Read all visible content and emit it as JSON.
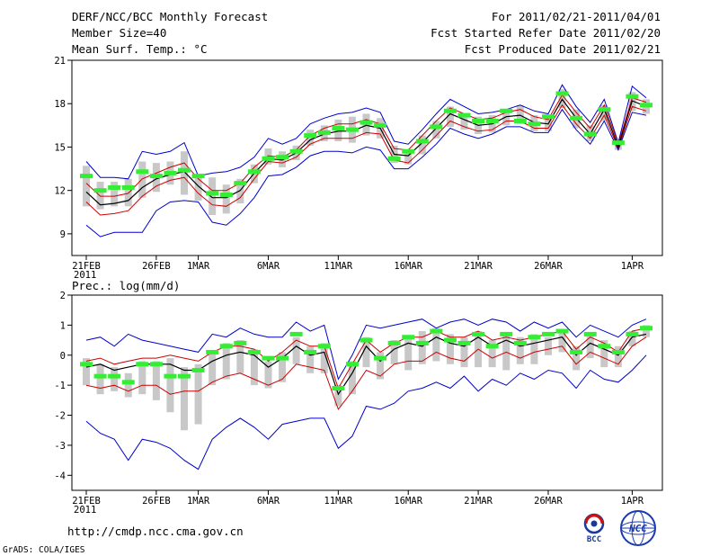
{
  "header": {
    "title": "DERF/NCC/BCC Monthly Forecast",
    "member_size": "Member Size=40",
    "variable": "Mean Surf. Temp.: °C",
    "period": "For 2011/02/21-2011/04/01",
    "start_refer": "Fcst Started Refer Date 2011/02/20",
    "produced": "Fcst Produced Date 2011/02/21"
  },
  "footer": {
    "url": "http://cmdp.ncc.cma.gov.cn",
    "grads": "GrADS: COLA/IGES",
    "logo_bcc": "BCC",
    "logo_ncc": "NCC"
  },
  "colors": {
    "max_min": "#0000cc",
    "std": "#cc0000",
    "mean": "#000000",
    "box": "#c8c8c8",
    "observed": "#33ee33"
  },
  "chart_data": [
    {
      "type": "line",
      "title": "Mean Surf. Temp.: °C",
      "ylim": [
        7.5,
        21
      ],
      "yticks": [
        9,
        12,
        15,
        18,
        21
      ],
      "x_tick_labels": [
        {
          "day": 0,
          "label": "21FEB",
          "sub": "2011"
        },
        {
          "day": 5,
          "label": "26FEB"
        },
        {
          "day": 8,
          "label": "1MAR"
        },
        {
          "day": 13,
          "label": "6MAR"
        },
        {
          "day": 18,
          "label": "11MAR"
        },
        {
          "day": 23,
          "label": "16MAR"
        },
        {
          "day": 28,
          "label": "21MAR"
        },
        {
          "day": 33,
          "label": "26MAR"
        },
        {
          "day": 39,
          "label": "1APR"
        }
      ],
      "series": {
        "max": [
          14.0,
          12.9,
          12.9,
          12.8,
          14.7,
          14.5,
          14.7,
          15.3,
          13.0,
          13.2,
          13.3,
          13.6,
          14.3,
          15.6,
          15.2,
          15.6,
          16.6,
          17.0,
          17.3,
          17.4,
          17.7,
          17.4,
          15.4,
          15.2,
          16.2,
          17.3,
          18.3,
          17.8,
          17.3,
          17.4,
          17.6,
          17.9,
          17.5,
          17.3,
          19.3,
          17.8,
          16.7,
          18.3,
          15.3,
          19.2,
          18.4
        ],
        "std_up": [
          12.5,
          11.6,
          11.6,
          11.8,
          12.8,
          13.2,
          13.6,
          13.9,
          12.8,
          12.0,
          12.0,
          12.5,
          13.6,
          14.4,
          14.3,
          14.8,
          15.8,
          16.3,
          16.6,
          16.6,
          16.9,
          16.6,
          14.9,
          14.8,
          15.8,
          16.8,
          17.7,
          17.3,
          16.9,
          17.0,
          17.4,
          17.6,
          17.1,
          16.9,
          18.6,
          17.4,
          16.3,
          17.9,
          15.2,
          18.4,
          18.1
        ],
        "mean": [
          11.9,
          11.0,
          11.1,
          11.3,
          12.2,
          12.8,
          13.1,
          13.3,
          12.3,
          11.5,
          11.5,
          12.0,
          13.2,
          14.2,
          14.1,
          14.6,
          15.5,
          15.9,
          16.1,
          16.1,
          16.5,
          16.3,
          14.5,
          14.4,
          15.3,
          16.3,
          17.3,
          16.9,
          16.5,
          16.6,
          17.1,
          17.2,
          16.7,
          16.6,
          18.3,
          17.0,
          15.9,
          17.6,
          15.0,
          18.2,
          17.8
        ],
        "std_lo": [
          11.2,
          10.3,
          10.4,
          10.6,
          11.6,
          12.3,
          12.7,
          12.9,
          11.8,
          11.0,
          10.9,
          11.5,
          12.8,
          14.0,
          13.9,
          14.3,
          15.2,
          15.6,
          15.6,
          15.6,
          16.0,
          15.9,
          14.1,
          13.9,
          14.8,
          15.8,
          16.8,
          16.4,
          16.1,
          16.2,
          16.8,
          16.8,
          16.3,
          16.3,
          17.9,
          16.6,
          15.6,
          17.2,
          14.9,
          17.8,
          17.5
        ],
        "min": [
          9.6,
          8.8,
          9.1,
          9.1,
          9.1,
          10.6,
          11.2,
          11.3,
          11.2,
          9.8,
          9.6,
          10.4,
          11.5,
          13.0,
          13.1,
          13.6,
          14.4,
          14.7,
          14.7,
          14.6,
          15.0,
          14.8,
          13.5,
          13.5,
          14.3,
          15.2,
          16.3,
          15.9,
          15.6,
          15.9,
          16.4,
          16.4,
          16.0,
          16.0,
          17.6,
          16.2,
          15.2,
          16.8,
          14.8,
          17.4,
          17.2
        ],
        "box_hi": [
          13.7,
          12.6,
          12.6,
          12.8,
          14.0,
          13.9,
          14.0,
          14.7,
          12.9,
          12.9,
          12.4,
          12.8,
          13.8,
          14.9,
          14.7,
          15.1,
          16.2,
          16.5,
          16.9,
          17.1,
          17.3,
          17.0,
          15.1,
          14.8,
          15.8,
          16.8,
          17.8,
          17.2,
          17.1,
          17.2,
          17.4,
          17.9,
          17.2,
          17.1,
          19.0,
          17.6,
          16.5,
          17.9,
          15.2,
          18.8,
          18.3
        ],
        "box_lo": [
          10.9,
          10.7,
          10.9,
          10.9,
          11.5,
          11.9,
          12.4,
          11.7,
          11.3,
          10.3,
          10.4,
          11.1,
          12.5,
          13.8,
          13.6,
          14.1,
          15.1,
          15.4,
          15.4,
          15.3,
          15.8,
          15.6,
          13.9,
          13.8,
          14.5,
          15.6,
          16.4,
          16.2,
          15.9,
          16.0,
          16.5,
          16.6,
          16.1,
          16.1,
          17.7,
          16.3,
          15.4,
          16.8,
          14.8,
          17.5,
          17.3
        ],
        "observed": [
          13.0,
          12.0,
          12.2,
          12.2,
          13.3,
          13.0,
          13.2,
          13.4,
          13.0,
          11.8,
          11.7,
          12.5,
          13.3,
          14.2,
          14.3,
          14.7,
          15.8,
          16.0,
          16.3,
          16.2,
          16.7,
          16.5,
          14.2,
          14.7,
          15.4,
          16.4,
          17.5,
          17.2,
          16.8,
          16.8,
          17.5,
          16.8,
          16.6,
          17.1,
          18.7,
          17.0,
          15.9,
          17.6,
          15.3,
          18.5,
          17.9
        ]
      }
    },
    {
      "type": "line",
      "title": "Prec.: log(mm/d)",
      "ylim": [
        -4.5,
        2
      ],
      "yticks": [
        -4,
        -3,
        -2,
        -1,
        0,
        1,
        2
      ],
      "x_tick_labels": [
        {
          "day": 0,
          "label": "21FEB",
          "sub": "2011"
        },
        {
          "day": 5,
          "label": "26FEB"
        },
        {
          "day": 8,
          "label": "1MAR"
        },
        {
          "day": 13,
          "label": "6MAR"
        },
        {
          "day": 18,
          "label": "11MAR"
        },
        {
          "day": 23,
          "label": "16MAR"
        },
        {
          "day": 28,
          "label": "21MAR"
        },
        {
          "day": 33,
          "label": "26MAR"
        },
        {
          "day": 39,
          "label": "1APR"
        }
      ],
      "series": {
        "max": [
          0.5,
          0.6,
          0.3,
          0.7,
          0.5,
          0.4,
          0.3,
          0.2,
          0.1,
          0.7,
          0.6,
          0.9,
          0.7,
          0.6,
          0.6,
          1.1,
          0.8,
          1.0,
          -0.8,
          0.0,
          1.0,
          0.9,
          1.0,
          1.1,
          1.2,
          0.9,
          1.1,
          1.2,
          1.0,
          1.2,
          1.1,
          0.8,
          1.1,
          0.9,
          1.1,
          0.6,
          1.0,
          0.8,
          0.6,
          1.0,
          1.2
        ],
        "std_up": [
          -0.2,
          -0.1,
          -0.3,
          -0.2,
          -0.1,
          -0.1,
          0.0,
          -0.1,
          -0.2,
          0.1,
          0.3,
          0.3,
          0.2,
          -0.2,
          0.1,
          0.5,
          0.3,
          0.3,
          -1.1,
          -0.3,
          0.5,
          0.1,
          0.4,
          0.6,
          0.6,
          0.8,
          0.6,
          0.6,
          0.8,
          0.5,
          0.6,
          0.5,
          0.6,
          0.7,
          0.8,
          0.2,
          0.6,
          0.4,
          0.1,
          0.8,
          0.9
        ],
        "mean": [
          -0.4,
          -0.3,
          -0.5,
          -0.4,
          -0.3,
          -0.3,
          -0.3,
          -0.5,
          -0.5,
          -0.2,
          0.0,
          0.1,
          0.0,
          -0.4,
          -0.1,
          0.3,
          0.0,
          0.1,
          -1.3,
          -0.6,
          0.3,
          -0.2,
          0.2,
          0.4,
          0.3,
          0.6,
          0.4,
          0.3,
          0.6,
          0.3,
          0.5,
          0.3,
          0.4,
          0.5,
          0.6,
          0.0,
          0.4,
          0.2,
          0.0,
          0.6,
          0.7
        ],
        "std_lo": [
          -1.0,
          -1.1,
          -1.0,
          -1.2,
          -1.0,
          -1.0,
          -1.3,
          -1.2,
          -1.2,
          -0.9,
          -0.7,
          -0.6,
          -0.8,
          -1.0,
          -0.8,
          -0.3,
          -0.4,
          -0.5,
          -1.8,
          -1.2,
          -0.5,
          -0.7,
          -0.3,
          -0.2,
          -0.2,
          0.1,
          -0.1,
          -0.2,
          0.2,
          -0.1,
          0.1,
          -0.1,
          0.1,
          0.2,
          0.3,
          -0.3,
          0.1,
          -0.1,
          -0.3,
          0.3,
          0.6
        ],
        "min": [
          -2.2,
          -2.6,
          -2.8,
          -3.5,
          -2.8,
          -2.9,
          -3.1,
          -3.5,
          -3.8,
          -2.8,
          -2.4,
          -2.1,
          -2.4,
          -2.8,
          -2.3,
          -2.2,
          -2.1,
          -2.1,
          -3.1,
          -2.7,
          -1.7,
          -1.8,
          -1.6,
          -1.2,
          -1.1,
          -0.9,
          -1.1,
          -0.7,
          -1.2,
          -0.8,
          -1.0,
          -0.6,
          -0.8,
          -0.5,
          -0.6,
          -1.1,
          -0.5,
          -0.8,
          -0.9,
          -0.5,
          0.0
        ],
        "box_hi": [
          -0.1,
          -0.3,
          -0.4,
          -0.6,
          -0.2,
          -0.2,
          -0.1,
          -0.4,
          -0.3,
          0.1,
          0.4,
          0.5,
          0.2,
          -0.2,
          0.1,
          0.6,
          0.3,
          0.4,
          -1.0,
          -0.2,
          0.6,
          0.1,
          0.5,
          0.6,
          0.8,
          0.9,
          0.7,
          0.6,
          0.8,
          0.5,
          0.7,
          0.6,
          0.7,
          0.6,
          0.8,
          0.3,
          0.7,
          0.5,
          0.3,
          0.8,
          1.0
        ],
        "box_lo": [
          -1.0,
          -1.3,
          -1.2,
          -1.4,
          -1.3,
          -1.5,
          -1.9,
          -2.5,
          -2.3,
          -1.0,
          -0.8,
          -0.6,
          -1.0,
          -1.1,
          -0.9,
          -0.3,
          -0.6,
          -0.6,
          -1.7,
          -1.3,
          -0.4,
          -0.8,
          -0.3,
          -0.5,
          -0.3,
          -0.2,
          -0.3,
          -0.4,
          -0.4,
          -0.4,
          -0.5,
          -0.3,
          -0.3,
          0.0,
          0.1,
          -0.5,
          -0.1,
          -0.4,
          -0.4,
          0.3,
          0.6
        ],
        "observed": [
          -0.3,
          -0.7,
          -0.7,
          -0.9,
          -0.3,
          -0.3,
          -0.7,
          -0.7,
          -0.5,
          0.1,
          0.3,
          0.4,
          0.1,
          -0.1,
          -0.1,
          0.7,
          0.1,
          0.3,
          -1.1,
          -0.3,
          0.5,
          -0.1,
          0.4,
          0.6,
          0.4,
          0.8,
          0.5,
          0.4,
          0.7,
          0.3,
          0.7,
          0.4,
          0.6,
          0.7,
          0.8,
          0.1,
          0.7,
          0.3,
          0.1,
          0.7,
          0.9
        ]
      }
    }
  ]
}
